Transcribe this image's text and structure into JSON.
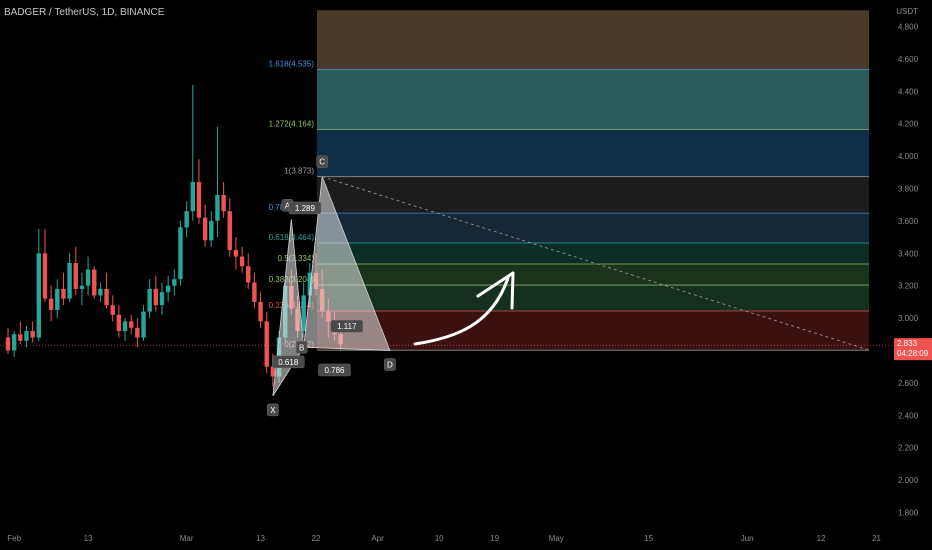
{
  "header": {
    "symbol_title": "BADGER / TetherUS, 1D, BINANCE",
    "currency": "USDT"
  },
  "colors": {
    "up": "#26a69a",
    "down": "#ef5350",
    "background": "#000000",
    "axis_text": "#8a8a8a",
    "pattern_fill": "#e8e8e8",
    "price_badge": "#ef5350"
  },
  "chart_data": {
    "type": "candlestick",
    "title": "BADGER / TetherUS, 1D, BINANCE",
    "yunit": "USDT",
    "ylim": [
      1.7,
      4.9
    ],
    "y_ticks": [
      "1.800",
      "2.000",
      "2.200",
      "2.400",
      "2.600",
      "2.800",
      "3.000",
      "3.200",
      "3.400",
      "3.600",
      "3.800",
      "4.000",
      "4.200",
      "4.400",
      "4.600",
      "4.800"
    ],
    "x_ticks": [
      "Feb",
      "13",
      "Mar",
      "13",
      "22",
      "Apr",
      "10",
      "19",
      "May",
      "15",
      "Jun",
      "12",
      "21"
    ],
    "x_tick_days": [
      1,
      13,
      29,
      41,
      50,
      60,
      70,
      79,
      89,
      104,
      120,
      132,
      141
    ],
    "last_price": {
      "label": "2.833",
      "countdown": "04:28:09",
      "value": 2.833
    },
    "candles": [
      [
        2.88,
        2.94,
        2.78,
        2.8
      ],
      [
        2.8,
        2.92,
        2.76,
        2.9
      ],
      [
        2.9,
        2.98,
        2.84,
        2.86
      ],
      [
        2.86,
        2.95,
        2.82,
        2.92
      ],
      [
        2.92,
        2.98,
        2.85,
        2.88
      ],
      [
        2.88,
        3.55,
        2.86,
        3.4
      ],
      [
        3.4,
        3.55,
        3.1,
        3.12
      ],
      [
        3.12,
        3.2,
        2.98,
        3.05
      ],
      [
        3.05,
        3.24,
        3.0,
        3.18
      ],
      [
        3.18,
        3.28,
        3.08,
        3.12
      ],
      [
        3.12,
        3.4,
        3.1,
        3.34
      ],
      [
        3.34,
        3.44,
        3.14,
        3.18
      ],
      [
        3.18,
        3.28,
        3.08,
        3.2
      ],
      [
        3.2,
        3.38,
        3.14,
        3.3
      ],
      [
        3.3,
        3.32,
        3.12,
        3.14
      ],
      [
        3.14,
        3.22,
        3.1,
        3.18
      ],
      [
        3.18,
        3.28,
        3.06,
        3.08
      ],
      [
        3.08,
        3.14,
        2.98,
        3.02
      ],
      [
        3.02,
        3.08,
        2.88,
        2.92
      ],
      [
        2.92,
        3.0,
        2.86,
        2.98
      ],
      [
        2.98,
        3.02,
        2.9,
        2.94
      ],
      [
        2.94,
        3.0,
        2.82,
        2.88
      ],
      [
        2.88,
        3.08,
        2.86,
        3.04
      ],
      [
        3.04,
        3.24,
        3.0,
        3.18
      ],
      [
        3.18,
        3.26,
        3.04,
        3.08
      ],
      [
        3.08,
        3.22,
        3.02,
        3.16
      ],
      [
        3.16,
        3.26,
        3.1,
        3.2
      ],
      [
        3.2,
        3.3,
        3.14,
        3.24
      ],
      [
        3.24,
        3.6,
        3.2,
        3.56
      ],
      [
        3.56,
        3.72,
        3.5,
        3.66
      ],
      [
        3.66,
        4.44,
        3.6,
        3.84
      ],
      [
        3.84,
        3.98,
        3.58,
        3.62
      ],
      [
        3.62,
        3.7,
        3.44,
        3.48
      ],
      [
        3.48,
        3.66,
        3.44,
        3.6
      ],
      [
        3.6,
        4.18,
        3.5,
        3.76
      ],
      [
        3.76,
        3.84,
        3.62,
        3.66
      ],
      [
        3.66,
        3.74,
        3.38,
        3.42
      ],
      [
        3.42,
        3.5,
        3.3,
        3.38
      ],
      [
        3.38,
        3.44,
        3.28,
        3.32
      ],
      [
        3.32,
        3.4,
        3.18,
        3.22
      ],
      [
        3.22,
        3.28,
        3.06,
        3.1
      ],
      [
        3.1,
        3.16,
        2.94,
        2.98
      ],
      [
        2.98,
        3.04,
        2.66,
        2.7
      ],
      [
        2.7,
        2.78,
        2.58,
        2.64
      ],
      [
        2.64,
        2.92,
        2.6,
        2.88
      ],
      [
        2.88,
        3.24,
        2.84,
        3.2
      ],
      [
        3.2,
        3.3,
        3.02,
        3.06
      ],
      [
        3.06,
        3.14,
        2.88,
        2.92
      ],
      [
        2.92,
        3.22,
        2.88,
        3.14
      ],
      [
        3.14,
        3.34,
        3.08,
        3.28
      ],
      [
        3.28,
        3.4,
        3.14,
        3.18
      ],
      [
        3.18,
        3.3,
        3.0,
        3.04
      ],
      [
        3.04,
        3.12,
        2.88,
        2.98
      ],
      [
        2.98,
        3.04,
        2.86,
        2.9
      ],
      [
        2.9,
        2.96,
        2.8,
        2.84
      ]
    ],
    "fib_levels": [
      {
        "label": "1.618(4.535)",
        "value": 4.535,
        "label_color": "#4a90d9",
        "fill": "#2c5a5a"
      },
      {
        "label": "1.272(4.164)",
        "value": 4.164,
        "label_color": "#8fc46a",
        "fill": "#0f2d45"
      },
      {
        "label": "1(3.873)",
        "value": 3.873,
        "label_color": "#a0a0a0",
        "fill": "#1c1c1c"
      },
      {
        "label": "0.786(3.648)",
        "value": 3.648,
        "label_color": "#4a90d9",
        "fill": "#152838"
      },
      {
        "label": "0.618(3.464)",
        "value": 3.464,
        "label_color": "#26a69a",
        "fill": "#0c2e26"
      },
      {
        "label": "0.5(3.334)",
        "value": 3.334,
        "label_color": "#8fc46a",
        "fill": "#1a331c"
      },
      {
        "label": "0.382(3.204)",
        "value": 3.204,
        "label_color": "#8fc46a",
        "fill": "#14301e"
      },
      {
        "label": "0.236(3.044)",
        "value": 3.044,
        "label_color": "#ef5350",
        "fill": "#3a1010"
      },
      {
        "label": "0(2.802)",
        "value": 2.802,
        "label_color": "#a0a0a0"
      }
    ],
    "top_zone_fill": "#4a3a28",
    "top_zone_to": 4.9,
    "pattern_points": [
      {
        "label": "X",
        "day": 43,
        "value": 2.52
      },
      {
        "label": "A",
        "day": 46,
        "value": 3.61
      },
      {
        "label": "B",
        "day": 48,
        "value": 2.82
      },
      {
        "label": "C",
        "day": 51,
        "value": 3.873
      },
      {
        "label": "D",
        "day": 62,
        "value": 2.8
      }
    ],
    "pattern_ratios": [
      {
        "label": "0.618",
        "day": 45.5,
        "value": 2.73
      },
      {
        "label": "1.289",
        "day": 48.2,
        "value": 3.68
      },
      {
        "label": "1.117",
        "day": 55,
        "value": 2.95
      },
      {
        "label": "0.786",
        "day": 53,
        "value": 2.68
      }
    ]
  }
}
